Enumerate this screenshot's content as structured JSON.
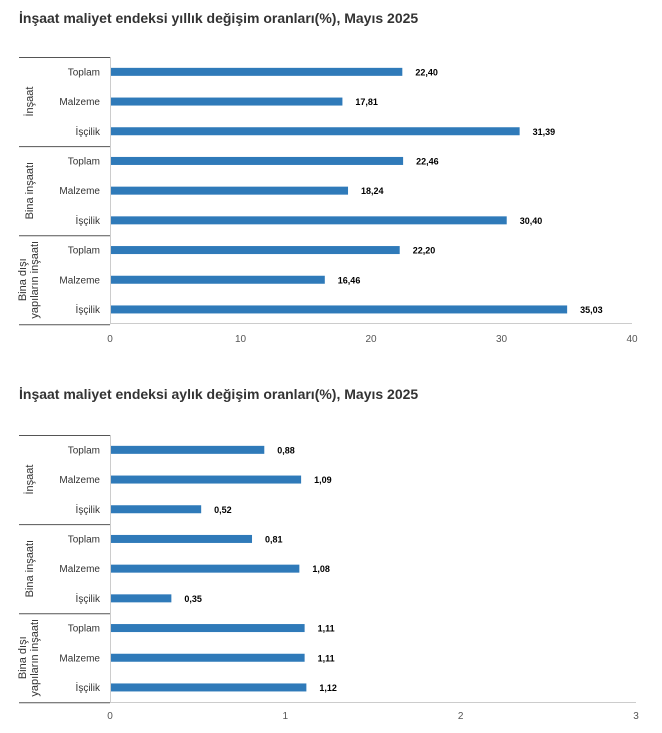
{
  "chart_data": [
    {
      "type": "bar",
      "orientation": "horizontal",
      "title": "İnşaat maliyet endeksi yıllık değişim oranları(%), Mayıs 2025",
      "groups": [
        {
          "name": "İnşaat",
          "categories": [
            "Toplam",
            "Malzeme",
            "İşçilik"
          ],
          "values": [
            22.4,
            17.81,
            31.39
          ],
          "labels": [
            "22,40",
            "17,81",
            "31,39"
          ]
        },
        {
          "name": "Bina inşaatı",
          "categories": [
            "Toplam",
            "Malzeme",
            "İşçilik"
          ],
          "values": [
            22.46,
            18.24,
            30.4
          ],
          "labels": [
            "22,46",
            "18,24",
            "30,40"
          ]
        },
        {
          "name": "Bina dışı yapıların inşaatı",
          "name_lines": [
            "Bina dışı",
            "yapıların inşaatı"
          ],
          "categories": [
            "Toplam",
            "Malzeme",
            "İşçilik"
          ],
          "values": [
            22.2,
            16.46,
            35.03
          ],
          "labels": [
            "22,20",
            "16,46",
            "35,03"
          ]
        }
      ],
      "xlim": [
        0,
        40
      ],
      "xticks": [
        0,
        10,
        20,
        30,
        40
      ],
      "grid": false,
      "bar_color": "#2f7ab9"
    },
    {
      "type": "bar",
      "orientation": "horizontal",
      "title": "İnşaat maliyet endeksi aylık değişim oranları(%), Mayıs 2025",
      "groups": [
        {
          "name": "İnşaat",
          "categories": [
            "Toplam",
            "Malzeme",
            "İşçilik"
          ],
          "values": [
            0.88,
            1.09,
            0.52
          ],
          "labels": [
            "0,88",
            "1,09",
            "0,52"
          ]
        },
        {
          "name": "Bina inşaatı",
          "categories": [
            "Toplam",
            "Malzeme",
            "İşçilik"
          ],
          "values": [
            0.81,
            1.08,
            0.35
          ],
          "labels": [
            "0,81",
            "1,08",
            "0,35"
          ]
        },
        {
          "name": "Bina dışı yapıların inşaatı",
          "name_lines": [
            "Bina dışı",
            "yapıların inşaatı"
          ],
          "categories": [
            "Toplam",
            "Malzeme",
            "İşçilik"
          ],
          "values": [
            1.11,
            1.11,
            1.12
          ],
          "labels": [
            "1,11",
            "1,11",
            "1,12"
          ]
        }
      ],
      "xlim": [
        0,
        3
      ],
      "xticks": [
        0,
        1,
        2,
        3
      ],
      "grid": false,
      "bar_color": "#2f7ab9"
    }
  ]
}
